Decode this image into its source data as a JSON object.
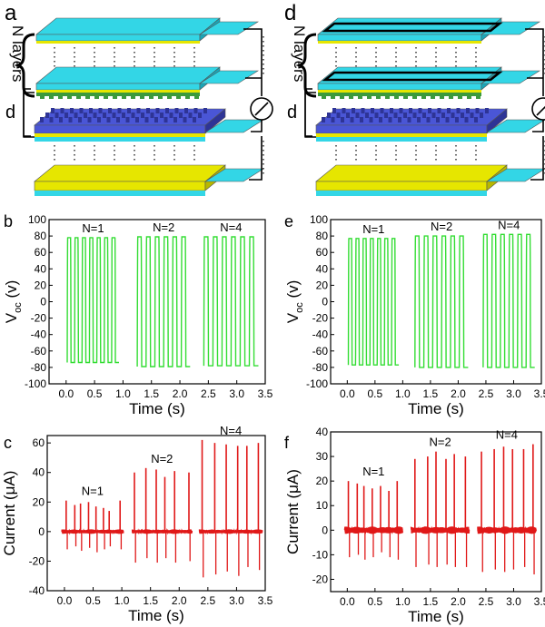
{
  "figure": {
    "panels": {
      "a": {
        "letter": "a",
        "layers_label": "N layers",
        "d_label": "d"
      },
      "d": {
        "letter": "d",
        "layers_label": "N layers",
        "d_label": "d"
      },
      "b": {
        "letter": "b"
      },
      "e": {
        "letter": "e"
      },
      "c": {
        "letter": "c"
      },
      "f": {
        "letter": "f"
      }
    },
    "colors": {
      "top_layer": "#33d6e6",
      "top_layer_dark": "#1aa6b8",
      "electrode": "#e6e600",
      "green_film": "#3c9a3c",
      "blue_film": "#4a56d6",
      "blue_film_dark": "#2e3496",
      "voltage_trace": "#33dd33",
      "current_trace": "#e01818",
      "axes": "#000000"
    }
  },
  "chart_data": [
    {
      "panel": "b",
      "type": "line",
      "xlabel": "Time (s)",
      "ylabel": "V_oc (v)",
      "ylabel_main": "V",
      "ylabel_sub": "oc",
      "ylabel_unit": "(v)",
      "xlim": [
        -0.3,
        3.5
      ],
      "ylim": [
        -100,
        100
      ],
      "xticks": [
        "0.0",
        "0.5",
        "1.0",
        "1.5",
        "2.0",
        "2.5",
        "3.0",
        "3.5"
      ],
      "yticks": [
        "-100",
        "-80",
        "-60",
        "-40",
        "-20",
        "0",
        "20",
        "40",
        "60",
        "80",
        "100"
      ],
      "annotations": [
        "N=1",
        "N=2",
        "N=4"
      ],
      "series": [
        {
          "label": "N=1",
          "t_start": 0.02,
          "t_end": 0.93,
          "cycles": 7,
          "peak": 78,
          "trough": -74
        },
        {
          "label": "N=2",
          "t_start": 1.25,
          "t_end": 2.18,
          "cycles": 6,
          "peak": 79,
          "trough": -79
        },
        {
          "label": "N=4",
          "t_start": 2.42,
          "t_end": 3.38,
          "cycles": 6,
          "peak": 79,
          "trough": -78
        }
      ]
    },
    {
      "panel": "e",
      "type": "line",
      "xlabel": "Time (s)",
      "ylabel": "V_oc (v)",
      "ylabel_main": "V",
      "ylabel_sub": "oc",
      "ylabel_unit": "(v)",
      "xlim": [
        -0.3,
        3.5
      ],
      "ylim": [
        -100,
        100
      ],
      "xticks": [
        "0.0",
        "0.5",
        "1.0",
        "1.5",
        "2.0",
        "2.5",
        "3.0",
        "3.5"
      ],
      "yticks": [
        "-100",
        "-80",
        "-60",
        "-40",
        "-20",
        "0",
        "20",
        "40",
        "60",
        "80",
        "100"
      ],
      "annotations": [
        "N=1",
        "N=2",
        "N=4"
      ],
      "series": [
        {
          "label": "N=1",
          "t_start": 0.02,
          "t_end": 0.93,
          "cycles": 7,
          "peak": 77,
          "trough": -77
        },
        {
          "label": "N=2",
          "t_start": 1.22,
          "t_end": 2.18,
          "cycles": 6,
          "peak": 80,
          "trough": -80
        },
        {
          "label": "N=4",
          "t_start": 2.45,
          "t_end": 3.38,
          "cycles": 6,
          "peak": 82,
          "trough": -80
        }
      ]
    },
    {
      "panel": "c",
      "type": "line",
      "xlabel": "Time (s)",
      "ylabel": "Current (μA)",
      "xlim": [
        -0.3,
        3.5
      ],
      "ylim": [
        -40,
        65
      ],
      "xticks": [
        "0.0",
        "0.5",
        "1.0",
        "1.5",
        "2.0",
        "2.5",
        "3.0",
        "3.5"
      ],
      "yticks": [
        "-40",
        "-20",
        "0",
        "20",
        "40",
        "60"
      ],
      "annotations": [
        "N=1",
        "N=2",
        "N=4"
      ],
      "series": [
        {
          "label": "N=1",
          "baseline_start": -0.05,
          "baseline_end": 1.03,
          "spikes": [
            {
              "t": 0.03,
              "pos": 21,
              "neg": -12
            },
            {
              "t": 0.18,
              "pos": 18,
              "neg": -10
            },
            {
              "t": 0.28,
              "pos": 19,
              "neg": -13
            },
            {
              "t": 0.42,
              "pos": 20,
              "neg": -11
            },
            {
              "t": 0.55,
              "pos": 17,
              "neg": -14
            },
            {
              "t": 0.68,
              "pos": 16,
              "neg": -12
            },
            {
              "t": 0.78,
              "pos": 14,
              "neg": -10
            },
            {
              "t": 0.97,
              "pos": 21,
              "neg": -12
            }
          ]
        },
        {
          "label": "N=2",
          "baseline_start": 1.18,
          "baseline_end": 2.22,
          "spikes": [
            {
              "t": 1.22,
              "pos": 40,
              "neg": -21
            },
            {
              "t": 1.42,
              "pos": 43,
              "neg": -18
            },
            {
              "t": 1.6,
              "pos": 42,
              "neg": -21
            },
            {
              "t": 1.75,
              "pos": 37,
              "neg": -18
            },
            {
              "t": 1.92,
              "pos": 41,
              "neg": -21
            },
            {
              "t": 2.17,
              "pos": 40,
              "neg": -20
            }
          ]
        },
        {
          "label": "N=4",
          "baseline_start": 2.35,
          "baseline_end": 3.45,
          "spikes": [
            {
              "t": 2.4,
              "pos": 62,
              "neg": -31
            },
            {
              "t": 2.62,
              "pos": 60,
              "neg": -29
            },
            {
              "t": 2.82,
              "pos": 59,
              "neg": -27
            },
            {
              "t": 3.02,
              "pos": 58,
              "neg": -30
            },
            {
              "t": 3.18,
              "pos": 58,
              "neg": -24
            },
            {
              "t": 3.38,
              "pos": 60,
              "neg": -26
            }
          ]
        }
      ]
    },
    {
      "panel": "f",
      "type": "line",
      "xlabel": "Time (s)",
      "ylabel": "Current (μA)",
      "xlim": [
        -0.3,
        3.5
      ],
      "ylim": [
        -25,
        40
      ],
      "xticks": [
        "0.0",
        "0.5",
        "1.0",
        "1.5",
        "2.0",
        "2.5",
        "3.0",
        "3.5"
      ],
      "yticks": [
        "-20",
        "-10",
        "0",
        "10",
        "20",
        "30",
        "40"
      ],
      "annotations": [
        "N=1",
        "N=2",
        "N=4"
      ],
      "series": [
        {
          "label": "N=1",
          "baseline_start": -0.05,
          "baseline_end": 1.0,
          "spikes": [
            {
              "t": 0.02,
              "pos": 20,
              "neg": -11
            },
            {
              "t": 0.18,
              "pos": 19,
              "neg": -10
            },
            {
              "t": 0.3,
              "pos": 18,
              "neg": -12
            },
            {
              "t": 0.45,
              "pos": 17,
              "neg": -11
            },
            {
              "t": 0.6,
              "pos": 18,
              "neg": -9
            },
            {
              "t": 0.75,
              "pos": 16,
              "neg": -11
            },
            {
              "t": 0.9,
              "pos": 20,
              "neg": -12
            }
          ]
        },
        {
          "label": "N=2",
          "baseline_start": 1.15,
          "baseline_end": 2.2,
          "spikes": [
            {
              "t": 1.22,
              "pos": 29,
              "neg": -15
            },
            {
              "t": 1.45,
              "pos": 30,
              "neg": -14
            },
            {
              "t": 1.6,
              "pos": 32,
              "neg": -15
            },
            {
              "t": 1.78,
              "pos": 29,
              "neg": -14
            },
            {
              "t": 1.93,
              "pos": 31,
              "neg": -15
            },
            {
              "t": 2.13,
              "pos": 30,
              "neg": -15
            }
          ]
        },
        {
          "label": "N=4",
          "baseline_start": 2.35,
          "baseline_end": 3.4,
          "spikes": [
            {
              "t": 2.42,
              "pos": 32,
              "neg": -17
            },
            {
              "t": 2.65,
              "pos": 33,
              "neg": -16
            },
            {
              "t": 2.82,
              "pos": 34,
              "neg": -17
            },
            {
              "t": 2.98,
              "pos": 33,
              "neg": -16
            },
            {
              "t": 3.18,
              "pos": 33,
              "neg": -15
            },
            {
              "t": 3.35,
              "pos": 35,
              "neg": -18
            }
          ]
        }
      ]
    }
  ]
}
